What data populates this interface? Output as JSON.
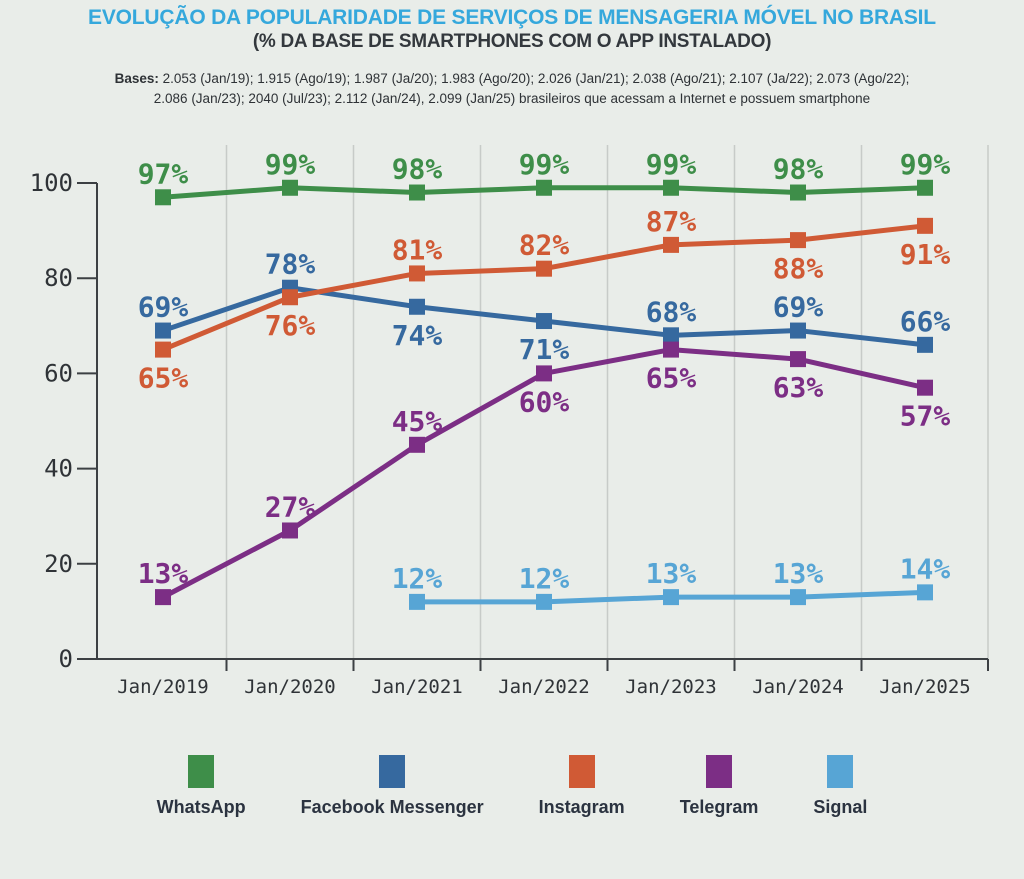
{
  "header": {
    "title": "EVOLUÇÃO DA POPULARIDADE DE SERVIÇOS DE MENSAGERIA MÓVEL NO BRASIL",
    "subtitle": "(% DA BASE DE SMARTPHONES COM O APP INSTALADO)",
    "bases_label": "Bases:",
    "bases_line1": "2.053 (Jan/19); 1.915 (Ago/19); 1.987 (Ja/20); 1.983 (Ago/20); 2.026 (Jan/21); 2.038 (Ago/21); 2.107 (Ja/22); 2.073 (Ago/22);",
    "bases_line2": "2.086 (Jan/23); 2040 (Jul/23); 2.112 (Jan/24), 2.099 (Jan/25) brasileiros que acessam a Internet e possuem smartphone"
  },
  "colors": {
    "background": "#e9ede9",
    "title_blue": "#35a8dc",
    "text_dark": "#33383d",
    "axis": "#3c4043",
    "grid": "#c7cbc8",
    "tick_label": "#2f3337",
    "legend_text": "#2b3340"
  },
  "chart_data": {
    "type": "line",
    "title": "EVOLUÇÃO DA POPULARIDADE DE SERVIÇOS DE MENSAGERIA MÓVEL NO BRASIL",
    "subtitle": "(% DA BASE DE SMARTPHONES COM O APP INSTALADO)",
    "x": [
      "Jan/2019",
      "Jan/2020",
      "Jan/2021",
      "Jan/2022",
      "Jan/2023",
      "Jan/2024",
      "Jan/2025"
    ],
    "ylim": [
      0,
      100
    ],
    "yticks": [
      0,
      20,
      40,
      60,
      80,
      100
    ],
    "grid": "vertical-between-points",
    "legend_position": "bottom",
    "value_label_suffix": "%",
    "series": [
      {
        "name": "WhatsApp",
        "color": "#3e8e49",
        "values": [
          97,
          99,
          98,
          99,
          99,
          98,
          99
        ],
        "label_pos": [
          "above",
          "above",
          "above",
          "above",
          "above",
          "above",
          "above"
        ]
      },
      {
        "name": "Facebook Messenger",
        "color": "#36699f",
        "values": [
          69,
          78,
          74,
          71,
          68,
          69,
          66
        ],
        "label_pos": [
          "above",
          "above",
          "below",
          "below",
          "above",
          "above",
          "above"
        ]
      },
      {
        "name": "Instagram",
        "color": "#d05a35",
        "values": [
          65,
          76,
          81,
          82,
          87,
          88,
          91
        ],
        "label_pos": [
          "below",
          "below",
          "above",
          "above",
          "above",
          "below",
          "below"
        ]
      },
      {
        "name": "Telegram",
        "color": "#7c2e85",
        "values": [
          13,
          27,
          45,
          60,
          65,
          63,
          57
        ],
        "label_pos": [
          "above",
          "above",
          "above",
          "below",
          "below",
          "below",
          "below"
        ]
      },
      {
        "name": "Signal",
        "color": "#57a5d5",
        "values": [
          null,
          null,
          12,
          12,
          13,
          13,
          14
        ],
        "label_pos": [
          null,
          null,
          "above",
          "above",
          "above",
          "above",
          "above"
        ]
      }
    ]
  }
}
